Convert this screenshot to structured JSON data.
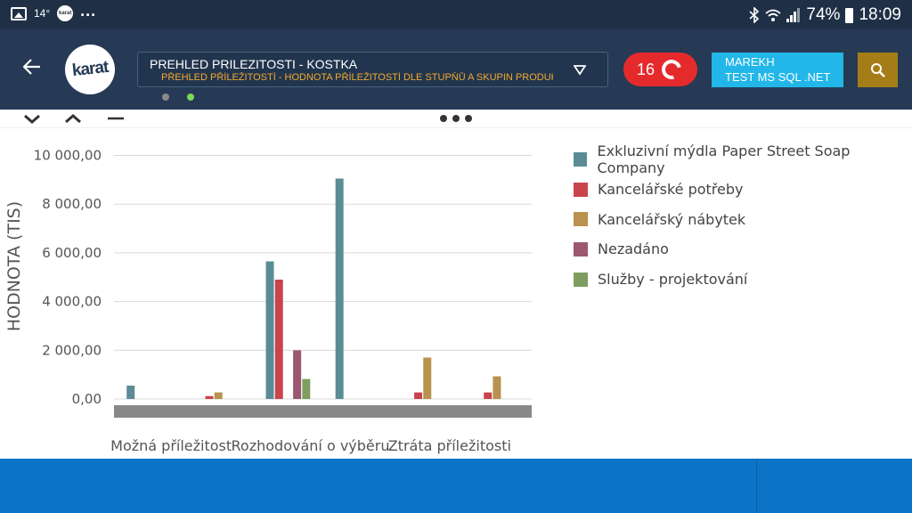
{
  "statusbar": {
    "temperature": "14°",
    "app_icon_text": "karat",
    "more": "...",
    "battery": "74%",
    "time": "18:09"
  },
  "header": {
    "logo_text": "karat",
    "report_title": "PREHLED PRILEZITOSTI - KOSTKA",
    "report_subtitle": "PŘEHLED PŘÍLEŽITOSTÍ - HODNOTA PŘÍLEŽITOSTÍ DLE STUPŇŮ A SKUPIN PRODUKT...",
    "notifications_count": "16",
    "user_name": "MAREKH",
    "user_db": "TEST MS SQL .NET",
    "page_dots": [
      {
        "active": false,
        "color": "#8a8a8a"
      },
      {
        "active": true,
        "color": "#7ed957"
      }
    ]
  },
  "colors": {
    "header_bg": "#263a55",
    "notif_bg": "#e52a2c",
    "user_bg": "#22b7e8",
    "search_bg": "#a57d18",
    "bottom_bg": "#0b74c6"
  },
  "chart_data": {
    "type": "bar",
    "ylabel": "HODNOTA (TIS)",
    "ylim": [
      0,
      10000
    ],
    "yticks": [
      "0,00",
      "2 000,00",
      "4 000,00",
      "6 000,00",
      "8 000,00",
      "10 000,00"
    ],
    "ytick_values": [
      0,
      2000,
      4000,
      6000,
      8000,
      10000
    ],
    "categories": [
      "Možná příležitost",
      "",
      "Rozhodování o výběru",
      "",
      "Ztráta příležitosti",
      ""
    ],
    "category_labels": [
      "Možná příležitost",
      "Rozhodování o výběru",
      "Ztráta příležitosti"
    ],
    "grid": true,
    "legend_position": "right",
    "series": [
      {
        "name": "Exkluzivní mýdla Paper Street Soap Company",
        "color": "#5b8c96",
        "values": [
          550,
          0,
          5650,
          9050,
          0,
          0
        ]
      },
      {
        "name": "Kancelářské potřeby",
        "color": "#c9444c",
        "values": [
          0,
          120,
          4900,
          0,
          270,
          270
        ]
      },
      {
        "name": "Kancelářský nábytek",
        "color": "#b8924e",
        "values": [
          0,
          270,
          0,
          0,
          1700,
          930
        ]
      },
      {
        "name": "Nezadáno",
        "color": "#9b5870",
        "values": [
          0,
          0,
          2000,
          0,
          0,
          0
        ]
      },
      {
        "name": "Služby - projektování",
        "color": "#7e9e5f",
        "values": [
          0,
          0,
          820,
          0,
          0,
          0
        ]
      }
    ]
  }
}
